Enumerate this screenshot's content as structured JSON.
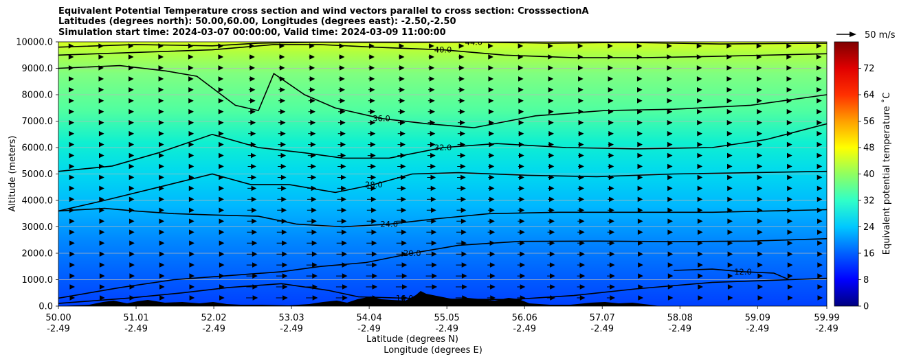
{
  "title_lines": [
    "Equivalent Potential Temperature cross section and wind vectors parallel to cross section: CrosssectionA",
    "Latitudes (degrees north): 50.00,60.00, Longitudes (degrees east): -2.50,-2.50",
    "Simulation start time: 2024-03-07 00:00:00, Valid time: 2024-03-09 11:00:00"
  ],
  "chart_data": {
    "type": "heatmap",
    "xlabel": "Latitude (degrees N)",
    "xlabel2": "Longitude (degrees E)",
    "ylabel": "Altitude (meters)",
    "x_ticks": [
      {
        "lat": "50.00",
        "lon": "-2.49",
        "value": 50.0
      },
      {
        "lat": "51.01",
        "lon": "-2.49",
        "value": 51.01
      },
      {
        "lat": "52.02",
        "lon": "-2.49",
        "value": 52.02
      },
      {
        "lat": "53.03",
        "lon": "-2.49",
        "value": 53.03
      },
      {
        "lat": "54.04",
        "lon": "-2.49",
        "value": 54.04
      },
      {
        "lat": "55.05",
        "lon": "-2.49",
        "value": 55.05
      },
      {
        "lat": "56.06",
        "lon": "-2.49",
        "value": 56.06
      },
      {
        "lat": "57.07",
        "lon": "-2.49",
        "value": 57.07
      },
      {
        "lat": "58.08",
        "lon": "-2.49",
        "value": 58.08
      },
      {
        "lat": "59.09",
        "lon": "-2.49",
        "value": 59.09
      },
      {
        "lat": "59.99",
        "lon": "-2.49",
        "value": 59.99
      }
    ],
    "xlim": [
      50.0,
      59.99
    ],
    "y_ticks": [
      "0.0",
      "1000.0",
      "2000.0",
      "3000.0",
      "4000.0",
      "5000.0",
      "6000.0",
      "7000.0",
      "8000.0",
      "9000.0",
      "10000.0"
    ],
    "ylim": [
      0,
      10000
    ],
    "grid": "horizontal",
    "colorbar": {
      "label": "Equivalent potential temperature ˚C",
      "range": [
        0,
        80
      ],
      "ticks": [
        "0",
        "8",
        "16",
        "24",
        "32",
        "40",
        "48",
        "56",
        "64",
        "72"
      ]
    },
    "quiver_key": "50 m/s",
    "contours": [
      {
        "level": 16,
        "label": "16.0",
        "points": [
          [
            50.0,
            100
          ],
          [
            50.9,
            300
          ],
          [
            51.6,
            500
          ],
          [
            52.2,
            700
          ],
          [
            52.9,
            850
          ],
          [
            53.5,
            600
          ],
          [
            53.9,
            350
          ],
          [
            54.5,
            300
          ],
          [
            55.1,
            260
          ],
          [
            55.9,
            250
          ],
          [
            56.7,
            400
          ],
          [
            57.5,
            650
          ],
          [
            58.5,
            900
          ],
          [
            59.99,
            1050
          ]
        ]
      },
      {
        "level": 20,
        "label": "20.0",
        "points": [
          [
            50.0,
            300
          ],
          [
            50.8,
            700
          ],
          [
            51.5,
            1000
          ],
          [
            52.2,
            1150
          ],
          [
            52.9,
            1300
          ],
          [
            53.4,
            1500
          ],
          [
            54.0,
            1650
          ],
          [
            54.6,
            2000
          ],
          [
            55.2,
            2300
          ],
          [
            56.0,
            2450
          ],
          [
            57.0,
            2460
          ],
          [
            58.0,
            2440
          ],
          [
            59.0,
            2460
          ],
          [
            59.99,
            2550
          ]
        ]
      },
      {
        "level": 24,
        "label": "24.0",
        "points": [
          [
            50.0,
            3600
          ],
          [
            50.6,
            3700
          ],
          [
            51.0,
            3600
          ],
          [
            51.5,
            3500
          ],
          [
            52.0,
            3450
          ],
          [
            52.6,
            3400
          ],
          [
            53.1,
            3100
          ],
          [
            53.7,
            3000
          ],
          [
            54.3,
            3100
          ],
          [
            54.9,
            3300
          ],
          [
            55.6,
            3500
          ],
          [
            56.5,
            3550
          ],
          [
            57.5,
            3550
          ],
          [
            58.5,
            3550
          ],
          [
            59.99,
            3650
          ]
        ]
      },
      {
        "level": 28,
        "label": "28.0",
        "points": [
          [
            50.0,
            3600
          ],
          [
            50.6,
            4000
          ],
          [
            51.3,
            4500
          ],
          [
            52.0,
            5000
          ],
          [
            52.5,
            4600
          ],
          [
            53.0,
            4600
          ],
          [
            53.6,
            4300
          ],
          [
            54.1,
            4600
          ],
          [
            54.6,
            5000
          ],
          [
            55.2,
            5050
          ],
          [
            56.1,
            4950
          ],
          [
            57.0,
            4900
          ],
          [
            58.0,
            5000
          ],
          [
            59.99,
            5100
          ]
        ]
      },
      {
        "level": 32,
        "label": "32.0",
        "points": [
          [
            50.0,
            5100
          ],
          [
            50.7,
            5300
          ],
          [
            51.3,
            5800
          ],
          [
            52.0,
            6500
          ],
          [
            52.6,
            6000
          ],
          [
            53.2,
            5800
          ],
          [
            53.7,
            5600
          ],
          [
            54.3,
            5600
          ],
          [
            55.0,
            6000
          ],
          [
            55.7,
            6150
          ],
          [
            56.6,
            6000
          ],
          [
            57.5,
            5950
          ],
          [
            58.5,
            6000
          ],
          [
            59.2,
            6300
          ],
          [
            59.99,
            6900
          ]
        ]
      },
      {
        "level": 36,
        "label": "36.0",
        "points": [
          [
            50.0,
            9000
          ],
          [
            50.8,
            9100
          ],
          [
            51.4,
            8900
          ],
          [
            51.8,
            8700
          ],
          [
            52.3,
            7600
          ],
          [
            52.6,
            7400
          ],
          [
            52.8,
            8800
          ],
          [
            53.2,
            8000
          ],
          [
            53.6,
            7500
          ],
          [
            54.2,
            7100
          ],
          [
            54.8,
            6900
          ],
          [
            55.4,
            6750
          ],
          [
            56.2,
            7200
          ],
          [
            57.1,
            7400
          ],
          [
            58.0,
            7450
          ],
          [
            59.0,
            7600
          ],
          [
            59.99,
            8000
          ]
        ]
      },
      {
        "level": 40,
        "label": "40.0",
        "points": [
          [
            50.0,
            9500
          ],
          [
            51.0,
            9600
          ],
          [
            52.0,
            9700
          ],
          [
            52.8,
            9900
          ],
          [
            53.4,
            9900
          ],
          [
            54.1,
            9800
          ],
          [
            55.0,
            9700
          ],
          [
            55.8,
            9500
          ],
          [
            56.7,
            9400
          ],
          [
            57.6,
            9400
          ],
          [
            58.5,
            9450
          ],
          [
            59.99,
            9550
          ]
        ]
      },
      {
        "level": 44,
        "label": "44.0",
        "points": [
          [
            50.0,
            9800
          ],
          [
            51.0,
            9900
          ],
          [
            52.0,
            9850
          ],
          [
            52.6,
            9950
          ],
          [
            53.4,
            9990
          ],
          [
            54.4,
            9980
          ],
          [
            55.4,
            9990
          ],
          [
            56.4,
            9950
          ],
          [
            57.4,
            9980
          ],
          [
            58.6,
            9920
          ],
          [
            59.99,
            9950
          ]
        ]
      },
      {
        "level": 12,
        "label": "12.0",
        "points": [
          [
            58.0,
            1350
          ],
          [
            58.5,
            1400
          ],
          [
            58.9,
            1300
          ],
          [
            59.3,
            1250
          ],
          [
            59.5,
            1000
          ]
        ]
      }
    ]
  }
}
